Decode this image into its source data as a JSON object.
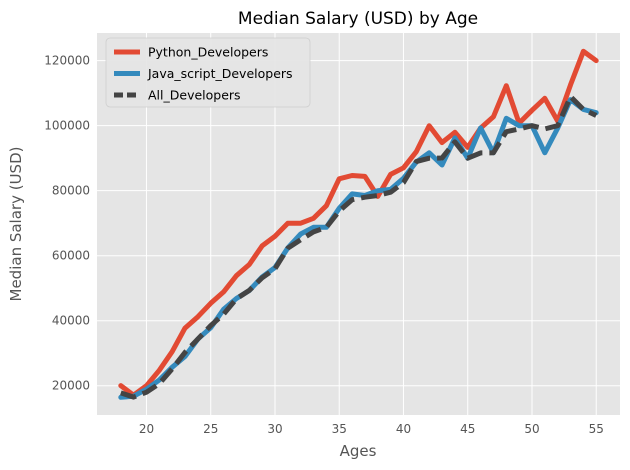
{
  "chart_data": {
    "type": "line",
    "title": "Median Salary (USD) by Age",
    "xlabel": "Ages",
    "ylabel": "Median Salary (USD)",
    "xlim": [
      16.15,
      56.85
    ],
    "ylim": [
      11000,
      128500
    ],
    "x_ticks": [
      20,
      25,
      30,
      35,
      40,
      45,
      50,
      55
    ],
    "y_ticks": [
      20000,
      40000,
      60000,
      80000,
      100000,
      120000
    ],
    "grid": true,
    "legend_position": "upper-left",
    "x": [
      18,
      19,
      20,
      21,
      22,
      23,
      24,
      25,
      26,
      27,
      28,
      29,
      30,
      31,
      32,
      33,
      34,
      35,
      36,
      37,
      38,
      39,
      40,
      41,
      42,
      43,
      44,
      45,
      46,
      47,
      48,
      49,
      50,
      51,
      52,
      53,
      54,
      55
    ],
    "series": [
      {
        "name": "Python_Developers",
        "color": "#E24A33",
        "dash": "solid",
        "values": [
          20046,
          17100,
          20000,
          24744,
          30500,
          37732,
          41247,
          45372,
          48876,
          53850,
          57287,
          63016,
          65998,
          70003,
          70000,
          71496,
          75370,
          83640,
          84666,
          84392,
          78254,
          85000,
          87038,
          91991,
          100000,
          94796,
          97962,
          93302,
          99240,
          102736,
          112285,
          100771,
          104708,
          108423,
          101407,
          112542,
          122870,
          120000
        ]
      },
      {
        "name": "Java_script_Developers",
        "color": "#348ABD",
        "dash": "solid",
        "values": [
          16446,
          16791,
          18942,
          21780,
          25704,
          29000,
          34372,
          37810,
          43515,
          46823,
          49293,
          53437,
          56373,
          62375,
          66674,
          68745,
          68746,
          74583,
          79000,
          78508,
          79996,
          80403,
          83820,
          88833,
          91660,
          87892,
          96243,
          90000,
          99313,
          91660,
          102264,
          100000,
          100000,
          91660,
          99240,
          108000,
          105000,
          104000
        ]
      },
      {
        "name": "All_Developers",
        "color": "#444444",
        "dash": "dashed",
        "values": [
          17784,
          16500,
          18012,
          20628,
          25206,
          30252,
          34368,
          38496,
          42000,
          46752,
          49320,
          53200,
          56000,
          62316,
          64928,
          67317,
          68748,
          73752,
          77232,
          78000,
          78508,
          79536,
          82488,
          88935,
          90000,
          90056,
          95000,
          90000,
          91633,
          91660,
          98150,
          98964,
          100000,
          98988,
          100000,
          108923,
          105000,
          103117
        ]
      }
    ]
  }
}
